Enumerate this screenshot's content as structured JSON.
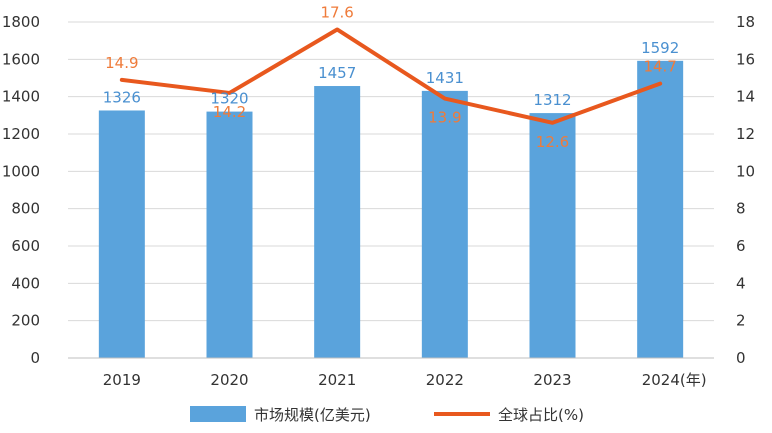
{
  "chart_data": {
    "type": "bar",
    "categories": [
      "2019",
      "2020",
      "2021",
      "2022",
      "2023",
      "2024"
    ],
    "x_unit": "(年)",
    "series": [
      {
        "name": "市场规模(亿美元)",
        "type": "bar",
        "axis": "left",
        "values": [
          1326,
          1320,
          1457,
          1431,
          1312,
          1592
        ]
      },
      {
        "name": "全球占比(%)",
        "type": "line",
        "axis": "right",
        "values": [
          14.9,
          14.2,
          17.6,
          13.9,
          12.6,
          14.7
        ]
      }
    ],
    "y_left": {
      "min": 0,
      "max": 1800,
      "ticks": [
        0,
        200,
        400,
        600,
        800,
        1000,
        1200,
        1400,
        1600,
        1800
      ]
    },
    "y_right": {
      "min": 0,
      "max": 18,
      "ticks": [
        0,
        2,
        4,
        6,
        8,
        10,
        12,
        14,
        16,
        18
      ]
    },
    "grid": true,
    "legend_position": "bottom",
    "colors": {
      "bar": "#5aa3dc",
      "line": "#e8581e",
      "bar_label": "#4a90d0",
      "line_label": "#ef7b3a",
      "grid": "#d9d9d9",
      "axis": "#bfbfbf"
    }
  }
}
